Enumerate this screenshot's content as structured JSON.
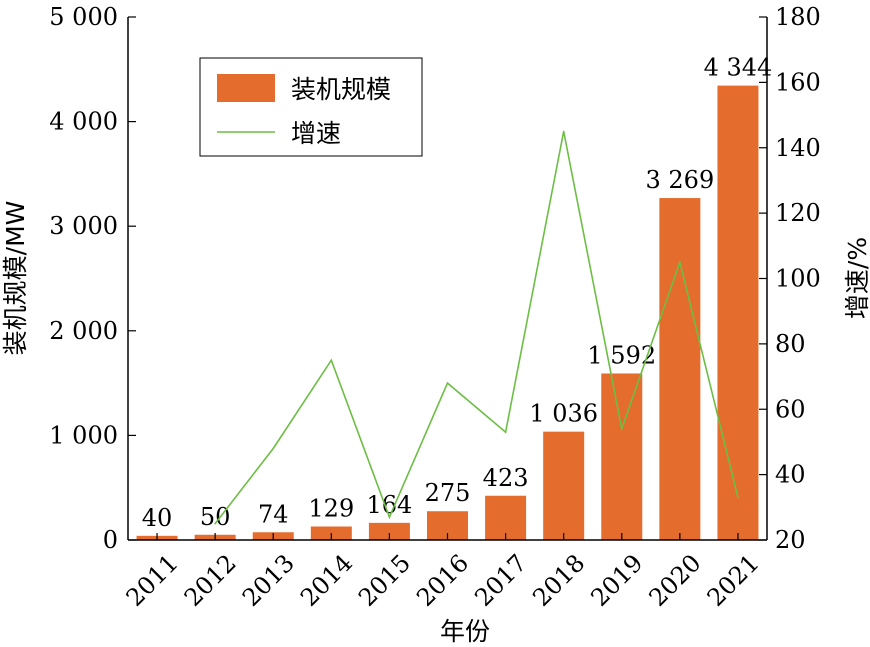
{
  "chart_data": {
    "type": "bar",
    "categories": [
      "2011",
      "2012",
      "2013",
      "2014",
      "2015",
      "2016",
      "2017",
      "2018",
      "2019",
      "2020",
      "2021"
    ],
    "series": [
      {
        "name": "装机规模",
        "type": "bar",
        "axis": "left",
        "color": "#E46C2C",
        "values": [
          40,
          50,
          74,
          129,
          164,
          275,
          423,
          1036,
          1592,
          3269,
          4344
        ],
        "value_labels": [
          "40",
          "50",
          "74",
          "129",
          "164",
          "275",
          "423",
          "1 036",
          "1 592",
          "3 269",
          "4 344"
        ]
      },
      {
        "name": "增速",
        "type": "line",
        "axis": "right",
        "color": "#6DBE45",
        "x": [
          "2012",
          "2013",
          "2014",
          "2015",
          "2016",
          "2017",
          "2018",
          "2019",
          "2020",
          "2021"
        ],
        "values": [
          25,
          48,
          75,
          27,
          68,
          53,
          145,
          54,
          105,
          33
        ]
      }
    ],
    "xlabel": "年份",
    "ylabel_left": "装机规模/MW",
    "ylabel_right": "增速/%",
    "ylim_left": [
      0,
      5000
    ],
    "ylim_right": [
      20,
      180
    ],
    "yticks_left": [
      "0",
      "1 000",
      "2 000",
      "3 000",
      "4 000",
      "5 000"
    ],
    "yticks_right": [
      "20",
      "40",
      "60",
      "80",
      "100",
      "120",
      "140",
      "160",
      "180"
    ],
    "legend_position": "upper-left",
    "grid": false
  }
}
